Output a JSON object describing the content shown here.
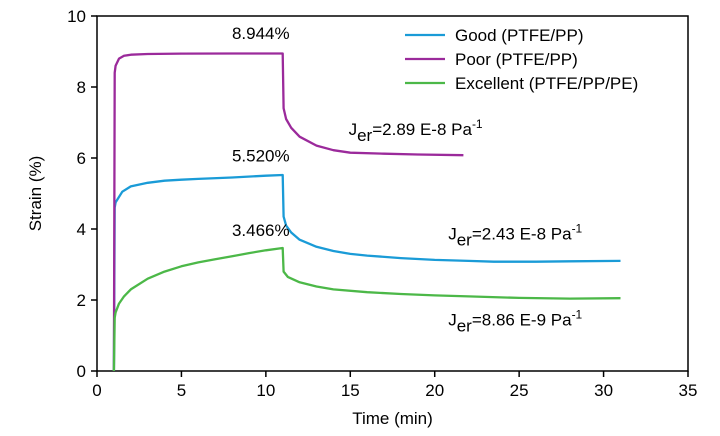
{
  "chart_data": {
    "type": "line",
    "xlabel": "Time (min)",
    "ylabel": "Strain (%)",
    "xlim": [
      0,
      35
    ],
    "ylim": [
      0,
      10
    ],
    "xticks": [
      0,
      5,
      10,
      15,
      20,
      25,
      30,
      35
    ],
    "yticks": [
      0,
      2,
      4,
      6,
      8,
      10
    ],
    "grid": false,
    "legend_position": "top-right",
    "series": [
      {
        "name": "Good (PTFE/PP)",
        "color": "#1a9bd7",
        "x": [
          1.0,
          1.05,
          1.1,
          1.5,
          2.0,
          3.0,
          4.0,
          5.0,
          6.0,
          8.0,
          10.0,
          11.0,
          11.05,
          11.2,
          11.5,
          12.0,
          13.0,
          14.0,
          15.0,
          16.0,
          18.0,
          20.0,
          22.0,
          23.5,
          26.0,
          28.0,
          31.0
        ],
        "y": [
          0.0,
          4.6,
          4.75,
          5.05,
          5.2,
          5.3,
          5.36,
          5.39,
          5.41,
          5.45,
          5.5,
          5.52,
          4.35,
          4.1,
          3.9,
          3.7,
          3.5,
          3.38,
          3.3,
          3.25,
          3.18,
          3.13,
          3.1,
          3.08,
          3.08,
          3.09,
          3.1
        ]
      },
      {
        "name": "Poor (PTFE/PP)",
        "color": "#9b2a9b",
        "x": [
          1.0,
          1.05,
          1.1,
          1.3,
          1.6,
          2.0,
          3.0,
          5.0,
          8.0,
          11.0,
          11.05,
          11.2,
          11.5,
          12.0,
          13.0,
          14.0,
          15.0,
          17.0,
          19.0,
          21.7
        ],
        "y": [
          0.0,
          8.4,
          8.6,
          8.8,
          8.88,
          8.91,
          8.93,
          8.94,
          8.944,
          8.944,
          7.4,
          7.1,
          6.85,
          6.6,
          6.35,
          6.22,
          6.15,
          6.12,
          6.1,
          6.08
        ]
      },
      {
        "name": "Excellent (PTFE/PP/PE)",
        "color": "#4cb848",
        "x": [
          1.0,
          1.05,
          1.1,
          1.3,
          1.6,
          2.0,
          3.0,
          4.0,
          5.0,
          6.0,
          7.0,
          8.0,
          9.0,
          10.0,
          11.0,
          11.05,
          11.3,
          12.0,
          13.0,
          14.0,
          16.0,
          18.0,
          20.0,
          22.0,
          25.0,
          28.0,
          31.0
        ],
        "y": [
          0.0,
          1.5,
          1.65,
          1.9,
          2.1,
          2.3,
          2.6,
          2.8,
          2.95,
          3.06,
          3.15,
          3.23,
          3.32,
          3.4,
          3.466,
          2.8,
          2.65,
          2.5,
          2.38,
          2.3,
          2.22,
          2.17,
          2.13,
          2.1,
          2.06,
          2.04,
          2.05
        ]
      }
    ],
    "annotations": [
      {
        "text": "8.944%",
        "x": 9.7,
        "y": 9.35,
        "anchor": "middle"
      },
      {
        "text": "5.520%",
        "x": 9.7,
        "y": 5.9,
        "anchor": "middle"
      },
      {
        "text": "3.466%",
        "x": 9.7,
        "y": 3.8,
        "anchor": "middle"
      },
      {
        "main": "J",
        "sub": "er",
        "rest": "=2.89 E-8 Pa",
        "sup": "-1",
        "x": 14.9,
        "y": 6.65
      },
      {
        "main": "J",
        "sub": "er",
        "rest": "=2.43 E-8 Pa",
        "sup": "-1",
        "x": 20.8,
        "y": 3.7
      },
      {
        "main": "J",
        "sub": "er",
        "rest": "=8.86 E-9 Pa",
        "sup": "-1",
        "x": 20.8,
        "y": 1.28
      }
    ]
  }
}
